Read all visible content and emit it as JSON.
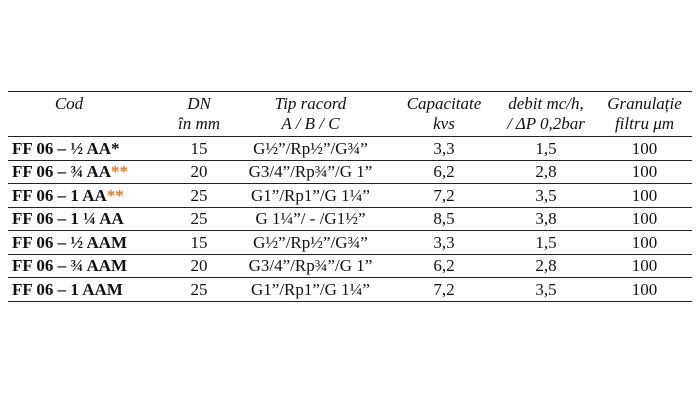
{
  "headers": {
    "cod": [
      "Cod"
    ],
    "dn": [
      "DN",
      "în mm"
    ],
    "tip": [
      "Tip racord",
      "A / B / C"
    ],
    "capacitate": [
      "Capacitate",
      "kvs"
    ],
    "debit": [
      "debit mc/h,",
      "/ ΔP 0,2bar"
    ],
    "granulatie": [
      "Granulație",
      "filtru μm"
    ]
  },
  "rows": [
    {
      "code": "FF 06 – ½ AA*",
      "stars": "",
      "dn": "15",
      "tip": "G½”/Rp½”/G¾”",
      "capacitate": "3,3",
      "debit": "1,5",
      "granulatie": "100"
    },
    {
      "code": "FF 06 – ¾ AA",
      "stars": "**",
      "dn": "20",
      "tip": "G3/4”/Rp¾”/G 1”",
      "capacitate": "6,2",
      "debit": "2,8",
      "granulatie": "100"
    },
    {
      "code": "FF 06 – 1 AA",
      "stars": "**",
      "dn": "25",
      "tip": "G1”/Rp1”/G 1¼”",
      "capacitate": "7,2",
      "debit": "3,5",
      "granulatie": "100"
    },
    {
      "code": "FF 06 – 1 ¼ AA",
      "stars": "",
      "dn": "25",
      "tip": "G 1¼”/  -  /G1½”",
      "capacitate": "8,5",
      "debit": "3,8",
      "granulatie": "100"
    },
    {
      "code": "FF 06 – ½ AAM",
      "stars": "",
      "dn": "15",
      "tip": "G½”/Rp½”/G¾”",
      "capacitate": "3,3",
      "debit": "1,5",
      "granulatie": "100"
    },
    {
      "code": "FF 06 – ¾ AAM",
      "stars": "",
      "dn": "20",
      "tip": "G3/4”/Rp¾”/G 1”",
      "capacitate": "6,2",
      "debit": "2,8",
      "granulatie": "100"
    },
    {
      "code": "FF 06 – 1 AAM",
      "stars": "",
      "dn": "25",
      "tip": "G1”/Rp1”/G 1¼”",
      "capacitate": "7,2",
      "debit": "3,5",
      "granulatie": "100"
    }
  ],
  "colors": {
    "text": "#111111",
    "rule": "#222222",
    "stars": "#e07a2e",
    "background": "#ffffff"
  }
}
